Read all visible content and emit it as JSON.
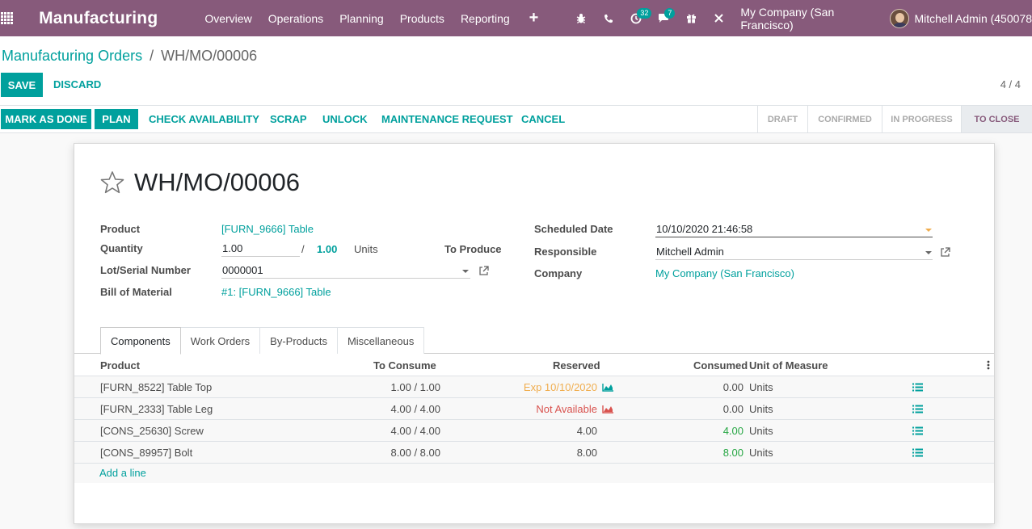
{
  "navbar": {
    "app_title": "Manufacturing",
    "menu": [
      "Overview",
      "Operations",
      "Planning",
      "Products",
      "Reporting"
    ],
    "plus_label": "+",
    "activity_badge": "32",
    "messages_badge": "7",
    "company": "My Company (San Francisco)",
    "user": "Mitchell Admin (450078"
  },
  "breadcrumb": {
    "parent": "Manufacturing Orders",
    "separator": "/",
    "current": "WH/MO/00006"
  },
  "actions": {
    "save": "SAVE",
    "discard": "DISCARD",
    "pager": "4 / 4"
  },
  "statusbar": {
    "buttons": {
      "mark_done": "MARK AS DONE",
      "plan": "PLAN",
      "check_availability": "CHECK AVAILABILITY",
      "scrap": "SCRAP",
      "unlock": "UNLOCK",
      "maintenance": "MAINTENANCE REQUEST",
      "cancel": "CANCEL"
    },
    "stages": [
      "DRAFT",
      "CONFIRMED",
      "IN PROGRESS",
      "TO CLOSE"
    ],
    "active_stage": "TO CLOSE"
  },
  "record": {
    "title": "WH/MO/00006",
    "fields": {
      "product_label": "Product",
      "product_value": "[FURN_9666] Table",
      "quantity_label": "Quantity",
      "quantity_value": "1.00",
      "quantity_sep": "/",
      "quantity_produce": "1.00",
      "quantity_uom": "Units",
      "to_produce": "To Produce",
      "lot_label": "Lot/Serial Number",
      "lot_value": "0000001",
      "bom_label": "Bill of Material",
      "bom_value": "#1: [FURN_9666] Table",
      "scheduled_label": "Scheduled Date",
      "scheduled_value": "10/10/2020 21:46:58",
      "responsible_label": "Responsible",
      "responsible_value": "Mitchell Admin",
      "company_label": "Company",
      "company_value": "My Company (San Francisco)"
    }
  },
  "tabs": [
    "Components",
    "Work Orders",
    "By-Products",
    "Miscellaneous"
  ],
  "table": {
    "columns": {
      "product": "Product",
      "to_consume": "To Consume",
      "reserved": "Reserved",
      "consumed": "Consumed",
      "uom": "Unit of Measure"
    },
    "rows": [
      {
        "product": "[FURN_8522] Table Top",
        "to_consume": "1.00 / 1.00",
        "reserved": "Exp 10/10/2020",
        "consumed": "0.00",
        "uom": "Units"
      },
      {
        "product": "[FURN_2333] Table Leg",
        "to_consume": "4.00 / 4.00",
        "reserved": "Not Available",
        "consumed": "0.00",
        "uom": "Units"
      },
      {
        "product": "[CONS_25630] Screw",
        "to_consume": "4.00 / 4.00",
        "reserved": "4.00",
        "consumed": "4.00",
        "uom": "Units"
      },
      {
        "product": "[CONS_89957] Bolt",
        "to_consume": "8.00 / 8.00",
        "reserved": "8.00",
        "consumed": "8.00",
        "uom": "Units"
      }
    ],
    "add_line": "Add a line"
  },
  "colors": {
    "brand": "#875a7b",
    "accent": "#00a09d",
    "warning": "#f0ad4e",
    "danger": "#d9534f",
    "success": "#28a745"
  }
}
